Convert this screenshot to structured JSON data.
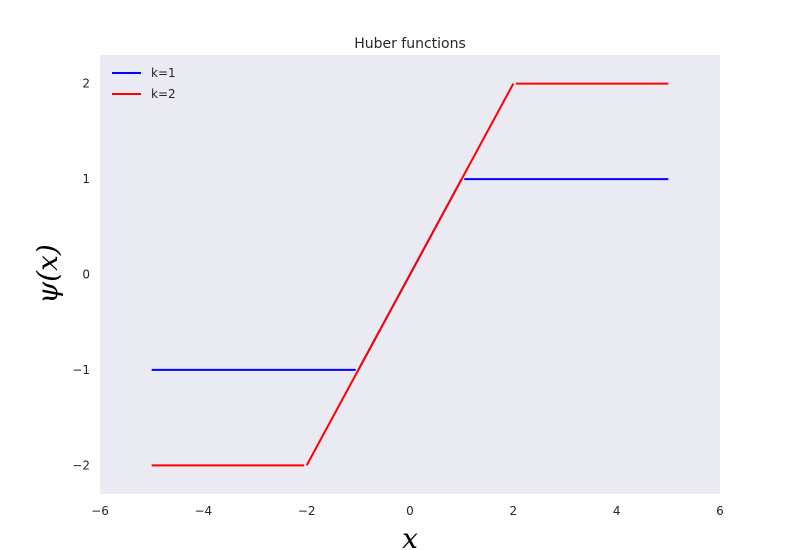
{
  "chart_data": {
    "type": "line",
    "title": "Huber functions",
    "xlabel": "x",
    "ylabel": "ψ(x)",
    "xlim": [
      -6,
      6
    ],
    "ylim": [
      -2.3,
      2.3
    ],
    "xticks": [
      -6,
      -4,
      -2,
      0,
      2,
      4,
      6
    ],
    "yticks": [
      -2,
      -1,
      0,
      1,
      2
    ],
    "xtick_labels": [
      "−6",
      "−4",
      "−2",
      "0",
      "2",
      "4",
      "6"
    ],
    "ytick_labels": [
      "−2",
      "−1",
      "0",
      "1",
      "2"
    ],
    "grid": false,
    "legend_position": "top-left",
    "series": [
      {
        "name": "k=1",
        "color": "#0000ff",
        "segments": [
          {
            "x": [
              -5,
              -1.05
            ],
            "y": [
              -1,
              -1
            ]
          },
          {
            "x": [
              -1,
              1
            ],
            "y": [
              -1,
              1
            ]
          },
          {
            "x": [
              1.05,
              5
            ],
            "y": [
              1,
              1
            ]
          }
        ]
      },
      {
        "name": "k=2",
        "color": "#ff0000",
        "segments": [
          {
            "x": [
              -5,
              -2.05
            ],
            "y": [
              -2,
              -2
            ]
          },
          {
            "x": [
              -2,
              2
            ],
            "y": [
              -2,
              2
            ]
          },
          {
            "x": [
              2.05,
              5
            ],
            "y": [
              2,
              2
            ]
          }
        ]
      }
    ]
  },
  "colors": {
    "plot_background": "#eaeaf2",
    "text": "#262626"
  }
}
